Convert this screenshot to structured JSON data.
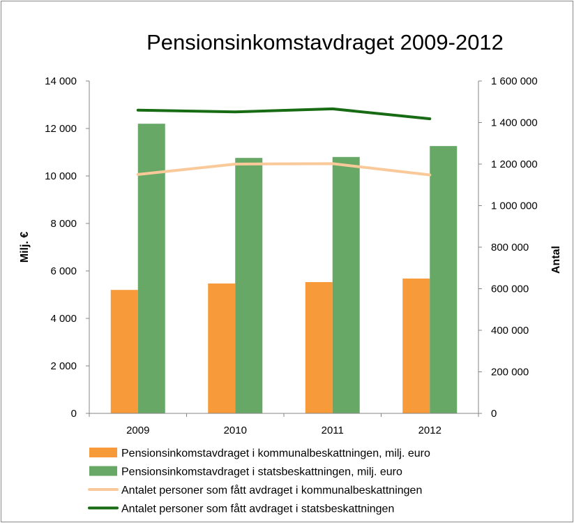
{
  "chart_data": {
    "type": "bar",
    "title": "Pensionsinkomstavdraget 2009-2012",
    "categories": [
      "2009",
      "2010",
      "2011",
      "2012"
    ],
    "ylabel": "Milj. €",
    "y2label": "Antal",
    "ylim": [
      0,
      14000
    ],
    "y2lim": [
      0,
      1600000
    ],
    "yticks": [
      "0",
      "2 000",
      "4 000",
      "6 000",
      "8 000",
      "10 000",
      "12 000",
      "14 000"
    ],
    "y2ticks": [
      "0",
      "200 000",
      "400 000",
      "600 000",
      "800 000",
      "1 000 000",
      "1 200 000",
      "1 400 000",
      "1 600 000"
    ],
    "grid": false,
    "legend_position": "bottom",
    "series": [
      {
        "name": "Pensionsinkomstavdraget i kommunalbeskattningen, milj. euro",
        "kind": "bar",
        "axis": "left",
        "color": "#F79A3A",
        "values": [
          5200,
          5470,
          5530,
          5680
        ]
      },
      {
        "name": "Pensionsinkomstavdraget i statsbeskattningen, milj. euro",
        "kind": "bar",
        "axis": "left",
        "color": "#68A866",
        "values": [
          12200,
          10760,
          10800,
          11260
        ]
      },
      {
        "name": "Antalet personer som fått avdraget i kommunalbeskattningen",
        "kind": "line",
        "axis": "right",
        "color": "#FAC99A",
        "values": [
          1150000,
          1200000,
          1202000,
          1148000
        ]
      },
      {
        "name": "Antalet personer som fått avdraget i statsbeskattningen",
        "kind": "line",
        "axis": "right",
        "color": "#176B12",
        "values": [
          1460000,
          1451000,
          1466000,
          1418000
        ]
      }
    ]
  }
}
